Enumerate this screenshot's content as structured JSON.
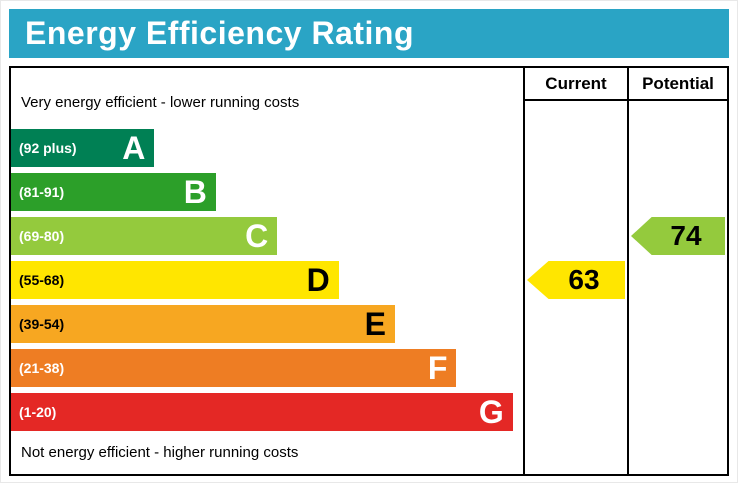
{
  "title": "Energy Efficiency Rating",
  "columns": {
    "current_label": "Current",
    "potential_label": "Potential"
  },
  "notes": {
    "top": "Very energy efficient - lower running costs",
    "bottom": "Not energy efficient - higher running costs"
  },
  "colors": {
    "title_bar_bg": "#2aa4c5",
    "title_text": "#ffffff",
    "border": "#000000",
    "current_arrow": "#ffe600",
    "potential_arrow": "#94ca3d"
  },
  "chart_data": {
    "type": "bar",
    "title": "Energy Efficiency Rating",
    "bands": [
      {
        "letter": "A",
        "range": "(92 plus)",
        "color": "#008054",
        "text_color": "#ffffff",
        "width_pct": 28
      },
      {
        "letter": "B",
        "range": "(81-91)",
        "color": "#2c9f29",
        "text_color": "#ffffff",
        "width_pct": 40
      },
      {
        "letter": "C",
        "range": "(69-80)",
        "color": "#94ca3d",
        "text_color": "#ffffff",
        "width_pct": 52
      },
      {
        "letter": "D",
        "range": "(55-68)",
        "color": "#ffe600",
        "text_color": "#000000",
        "width_pct": 64
      },
      {
        "letter": "E",
        "range": "(39-54)",
        "color": "#f7a721",
        "text_color": "#000000",
        "width_pct": 75
      },
      {
        "letter": "F",
        "range": "(21-38)",
        "color": "#ee7d23",
        "text_color": "#ffffff",
        "width_pct": 87
      },
      {
        "letter": "G",
        "range": "(1-20)",
        "color": "#e42825",
        "text_color": "#ffffff",
        "width_pct": 98
      }
    ],
    "current": {
      "value": 63,
      "band": "D"
    },
    "potential": {
      "value": 74,
      "band": "C"
    }
  }
}
